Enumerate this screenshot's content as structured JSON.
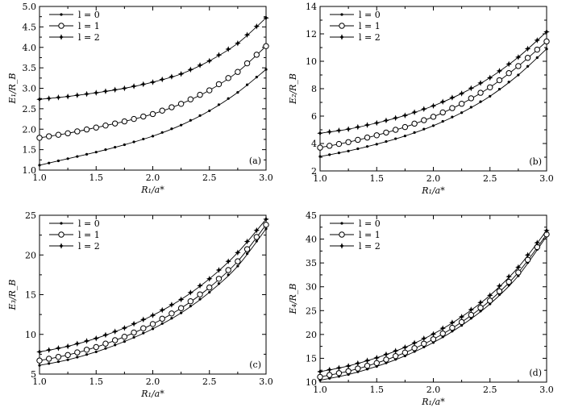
{
  "chart_data": [
    {
      "type": "line",
      "panel_label": "(a)",
      "xlabel": "R₁/a*",
      "ylabel": "E₁/R_B",
      "xlim": [
        1.0,
        3.0
      ],
      "ylim": [
        1.0,
        5.0
      ],
      "xticks": [
        "1.0",
        "1.5",
        "2.0",
        "2.5",
        "3.0"
      ],
      "yticks": [
        "1.0",
        "1.5",
        "2.0",
        "2.5",
        "3.0",
        "3.5",
        "4.0",
        "4.5",
        "5.0"
      ],
      "legend_position": "top-left",
      "series": [
        {
          "name": "l = 0",
          "marker": "dot",
          "x": [
            1.0,
            1.25,
            1.5,
            1.75,
            2.0,
            2.25,
            2.5,
            2.75,
            3.0
          ],
          "values": [
            1.12,
            1.28,
            1.44,
            1.62,
            1.83,
            2.1,
            2.45,
            2.9,
            3.46
          ]
        },
        {
          "name": "l = 1",
          "marker": "circle",
          "x": [
            1.0,
            1.25,
            1.5,
            1.75,
            2.0,
            2.25,
            2.5,
            2.75,
            3.0
          ],
          "values": [
            1.79,
            1.9,
            2.04,
            2.19,
            2.37,
            2.62,
            2.95,
            3.4,
            4.03
          ]
        },
        {
          "name": "l = 2",
          "marker": "star",
          "x": [
            1.0,
            1.25,
            1.5,
            1.75,
            2.0,
            2.25,
            2.5,
            2.75,
            3.0
          ],
          "values": [
            2.73,
            2.8,
            2.89,
            3.0,
            3.15,
            3.35,
            3.67,
            4.1,
            4.72
          ]
        }
      ]
    },
    {
      "type": "line",
      "panel_label": "(b)",
      "xlabel": "R₁/a*",
      "ylabel": "E₂/R_B",
      "xlim": [
        1.0,
        3.0
      ],
      "ylim": [
        2,
        14
      ],
      "xticks": [
        "1.0",
        "1.5",
        "2.0",
        "2.5",
        "3.0"
      ],
      "yticks": [
        "2",
        "4",
        "6",
        "8",
        "10",
        "12",
        "14"
      ],
      "legend_position": "top-left",
      "series": [
        {
          "name": "l = 0",
          "marker": "dot",
          "x": [
            1.0,
            1.25,
            1.5,
            1.75,
            2.0,
            2.25,
            2.5,
            2.75,
            3.0
          ],
          "values": [
            3.05,
            3.45,
            3.95,
            4.55,
            5.3,
            6.25,
            7.45,
            9.0,
            10.9
          ]
        },
        {
          "name": "l = 1",
          "marker": "circle",
          "x": [
            1.0,
            1.25,
            1.5,
            1.75,
            2.0,
            2.25,
            2.5,
            2.75,
            3.0
          ],
          "values": [
            3.7,
            4.1,
            4.6,
            5.2,
            5.95,
            6.9,
            8.1,
            9.65,
            11.45
          ]
        },
        {
          "name": "l = 2",
          "marker": "star",
          "x": [
            1.0,
            1.25,
            1.5,
            1.75,
            2.0,
            2.25,
            2.5,
            2.75,
            3.0
          ],
          "values": [
            4.75,
            5.05,
            5.5,
            6.05,
            6.75,
            7.65,
            8.8,
            10.3,
            12.15
          ]
        }
      ]
    },
    {
      "type": "line",
      "panel_label": "(c)",
      "xlabel": "R₁/a*",
      "ylabel": "E₃/R_B",
      "xlim": [
        1.0,
        3.0
      ],
      "ylim": [
        5,
        25
      ],
      "xticks": [
        "1.0",
        "1.5",
        "2.0",
        "2.5",
        "3.0"
      ],
      "yticks": [
        "5",
        "10",
        "15",
        "20",
        "25"
      ],
      "legend_position": "top-left",
      "series": [
        {
          "name": "l = 0",
          "marker": "dot",
          "x": [
            1.0,
            1.25,
            1.5,
            1.75,
            2.0,
            2.25,
            2.5,
            2.75,
            3.0
          ],
          "values": [
            6.1,
            6.8,
            7.8,
            9.1,
            10.7,
            12.7,
            15.3,
            18.6,
            23.3
          ]
        },
        {
          "name": "l = 1",
          "marker": "circle",
          "x": [
            1.0,
            1.25,
            1.5,
            1.75,
            2.0,
            2.25,
            2.5,
            2.75,
            3.0
          ],
          "values": [
            6.7,
            7.4,
            8.4,
            9.7,
            11.3,
            13.3,
            15.9,
            19.2,
            23.8
          ]
        },
        {
          "name": "l = 2",
          "marker": "star",
          "x": [
            1.0,
            1.25,
            1.5,
            1.75,
            2.0,
            2.25,
            2.5,
            2.75,
            3.0
          ],
          "values": [
            7.8,
            8.5,
            9.5,
            10.8,
            12.4,
            14.4,
            17.0,
            20.3,
            24.5
          ]
        }
      ]
    },
    {
      "type": "line",
      "panel_label": "(d)",
      "xlabel": "R₁/a*",
      "ylabel": "E₄/R_B",
      "xlim": [
        1.0,
        3.0
      ],
      "ylim": [
        10,
        45
      ],
      "xticks": [
        "1.0",
        "1.5",
        "2.0",
        "2.5",
        "3.0"
      ],
      "yticks": [
        "10",
        "15",
        "20",
        "25",
        "30",
        "35",
        "40",
        "45"
      ],
      "legend_position": "top-left",
      "series": [
        {
          "name": "l = 0",
          "marker": "dot",
          "x": [
            1.0,
            1.25,
            1.5,
            1.75,
            2.0,
            2.25,
            2.5,
            2.75,
            3.0
          ],
          "values": [
            10.4,
            11.6,
            13.3,
            15.5,
            18.3,
            21.9,
            26.4,
            32.3,
            40.6
          ]
        },
        {
          "name": "l = 1",
          "marker": "circle",
          "x": [
            1.0,
            1.25,
            1.5,
            1.75,
            2.0,
            2.25,
            2.5,
            2.75,
            3.0
          ],
          "values": [
            11.1,
            12.3,
            14.0,
            16.2,
            19.0,
            22.6,
            27.1,
            33.0,
            41.0
          ]
        },
        {
          "name": "l = 2",
          "marker": "star",
          "x": [
            1.0,
            1.25,
            1.5,
            1.75,
            2.0,
            2.25,
            2.5,
            2.75,
            3.0
          ],
          "values": [
            12.2,
            13.4,
            15.1,
            17.3,
            20.1,
            23.7,
            28.2,
            34.1,
            41.8
          ]
        }
      ]
    }
  ]
}
